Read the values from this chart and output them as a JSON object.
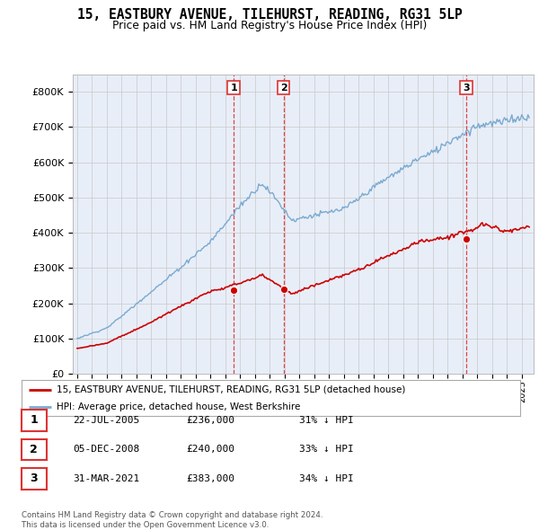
{
  "title": "15, EASTBURY AVENUE, TILEHURST, READING, RG31 5LP",
  "subtitle": "Price paid vs. HM Land Registry's House Price Index (HPI)",
  "ylim": [
    0,
    850000
  ],
  "yticks": [
    0,
    100000,
    200000,
    300000,
    400000,
    500000,
    600000,
    700000,
    800000
  ],
  "ytick_labels": [
    "£0",
    "£100K",
    "£200K",
    "£300K",
    "£400K",
    "£500K",
    "£600K",
    "£700K",
    "£800K"
  ],
  "red_line_color": "#cc0000",
  "blue_line_color": "#7aaad0",
  "sale_years": [
    2005.56,
    2008.92,
    2021.25
  ],
  "sale_prices": [
    236000,
    240000,
    383000
  ],
  "sale_labels": [
    "1",
    "2",
    "3"
  ],
  "vline_color": "#dd3333",
  "legend_red_label": "15, EASTBURY AVENUE, TILEHURST, READING, RG31 5LP (detached house)",
  "legend_blue_label": "HPI: Average price, detached house, West Berkshire",
  "table_rows": [
    [
      "1",
      "22-JUL-2005",
      "£236,000",
      "31% ↓ HPI"
    ],
    [
      "2",
      "05-DEC-2008",
      "£240,000",
      "33% ↓ HPI"
    ],
    [
      "3",
      "31-MAR-2021",
      "£383,000",
      "34% ↓ HPI"
    ]
  ],
  "footer": "Contains HM Land Registry data © Crown copyright and database right 2024.\nThis data is licensed under the Open Government Licence v3.0.",
  "background_color": "#ffffff",
  "plot_bg_color": "#e8eef8",
  "grid_color": "#c8c8c8",
  "xlim_left": 1994.7,
  "xlim_right": 2025.8
}
